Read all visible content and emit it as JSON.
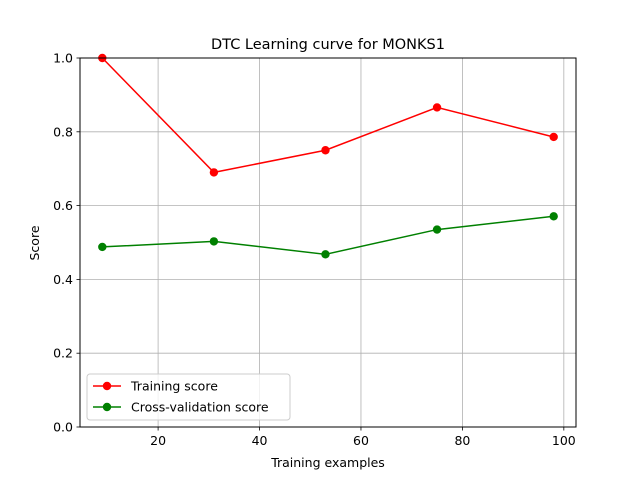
{
  "chart_data": {
    "type": "line",
    "title": "DTC Learning curve for MONKS1",
    "xlabel": "Training examples",
    "ylabel": "Score",
    "xlim": [
      4.6,
      102.4
    ],
    "ylim": [
      0.0,
      1.0
    ],
    "xticks": [
      20,
      40,
      60,
      80,
      100
    ],
    "yticks": [
      0.0,
      0.2,
      0.4,
      0.6,
      0.8,
      1.0
    ],
    "grid": true,
    "legend_position": "lower-left",
    "series": [
      {
        "name": "Training score",
        "color": "#ff0000",
        "marker": "circle",
        "x": [
          9,
          31,
          53,
          75,
          98
        ],
        "y": [
          1.0,
          0.69,
          0.75,
          0.866,
          0.786
        ]
      },
      {
        "name": "Cross-validation score",
        "color": "#008000",
        "marker": "circle",
        "x": [
          9,
          31,
          53,
          75,
          98
        ],
        "y": [
          0.488,
          0.503,
          0.468,
          0.535,
          0.571
        ]
      }
    ]
  }
}
